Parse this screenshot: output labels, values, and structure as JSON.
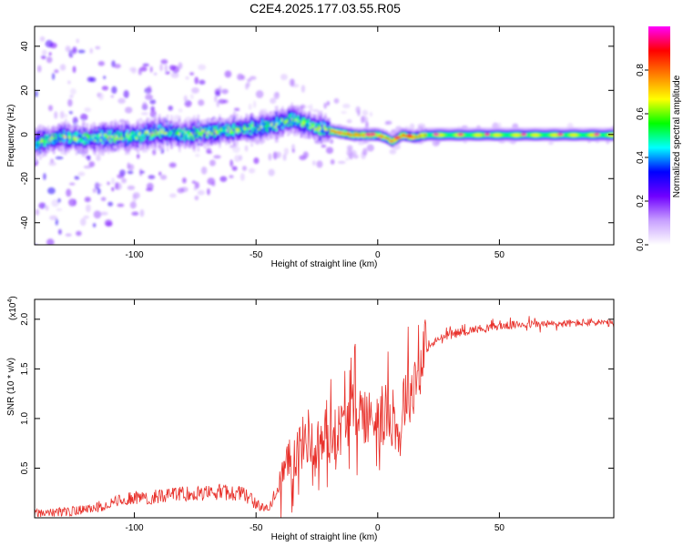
{
  "title": "C2E4.2025.177.03.55.R05",
  "chart_data": [
    {
      "type": "heatmap",
      "xlabel": "Height of straight line (km)",
      "ylabel": "Frequency (Hz)",
      "xlim": [
        -141,
        97
      ],
      "ylim": [
        -50,
        49
      ],
      "x_ticks": [
        -100,
        -50,
        0,
        50
      ],
      "y_ticks": [
        -40,
        -20,
        0,
        20,
        40
      ],
      "colorbar": {
        "label": "Normalized spectral amplitude",
        "range": [
          0,
          1
        ],
        "ticks": [
          0.0,
          0.2,
          0.4,
          0.6,
          0.8
        ],
        "tick_labels": [
          "0.0",
          "0.2",
          "0.4",
          "0.6",
          "0.8"
        ],
        "colormap": [
          "#ffffff",
          "#c8a0ff",
          "#7000ff",
          "#0000ff",
          "#00ffff",
          "#00ff00",
          "#ffff00",
          "#ff8000",
          "#ff0000",
          "#ff00ff"
        ]
      },
      "ridge": {
        "x": [
          -141,
          -130,
          -120,
          -110,
          -100,
          -90,
          -80,
          -70,
          -60,
          -50,
          -45,
          -40,
          -35,
          -30,
          -25,
          -20,
          -15,
          -10,
          -5,
          0,
          3,
          6,
          10,
          15,
          20,
          30,
          40,
          50,
          60,
          70,
          80,
          90,
          97
        ],
        "y": [
          -4,
          -1,
          -2,
          -1,
          -1,
          1,
          0,
          1,
          2,
          3,
          4,
          5,
          7,
          5,
          3,
          2,
          1,
          0,
          0,
          0,
          -1,
          -3,
          0,
          -1,
          0,
          0,
          0,
          0,
          0,
          0,
          0,
          0,
          0
        ]
      }
    },
    {
      "type": "line",
      "xlabel": "Height of straight line (km)",
      "ylabel": "SNR (10 * v/v)",
      "y_multiplier_label": "(x10",
      "y_multiplier_exp": "4",
      "xlim": [
        -141,
        97
      ],
      "ylim": [
        0,
        2.2
      ],
      "x_ticks": [
        -100,
        -50,
        0,
        50
      ],
      "y_ticks": [
        0.5,
        1.0,
        1.5,
        2.0
      ],
      "y_tick_labels": [
        "0.5",
        "1.0",
        "1.5",
        "2.0"
      ],
      "color": "#e8302a",
      "series": [
        {
          "x": [
            -141,
            -135,
            -130,
            -125,
            -120,
            -115,
            -110,
            -105,
            -100,
            -95,
            -90,
            -85,
            -80,
            -75,
            -70,
            -65,
            -60,
            -55,
            -50,
            -47,
            -45,
            -42,
            -40,
            -38,
            -35,
            -32,
            -30,
            -28,
            -26,
            -24,
            -22,
            -20,
            -18,
            -16,
            -14,
            -12,
            -10,
            -8,
            -6,
            -4,
            -2,
            0,
            2,
            4,
            6,
            8,
            9,
            10,
            12,
            14,
            16,
            18,
            20,
            25,
            30,
            40,
            50,
            60,
            70,
            80,
            90,
            97
          ],
          "y": [
            0.03,
            0.03,
            0.04,
            0.05,
            0.06,
            0.09,
            0.12,
            0.15,
            0.18,
            0.17,
            0.19,
            0.2,
            0.21,
            0.21,
            0.22,
            0.23,
            0.22,
            0.21,
            0.12,
            0.07,
            0.09,
            0.2,
            0.35,
            0.45,
            0.6,
            0.72,
            0.78,
            0.85,
            0.62,
            0.78,
            0.75,
            0.8,
            0.85,
            0.88,
            0.95,
            1.02,
            1.08,
            1.1,
            1.05,
            1.0,
            1.02,
            1.05,
            0.95,
            1.1,
            1.0,
            0.95,
            0.65,
            1.15,
            1.25,
            1.3,
            1.45,
            1.6,
            1.7,
            1.8,
            1.85,
            1.9,
            1.93,
            1.95,
            1.95,
            1.96,
            1.97,
            1.95
          ]
        }
      ]
    }
  ]
}
